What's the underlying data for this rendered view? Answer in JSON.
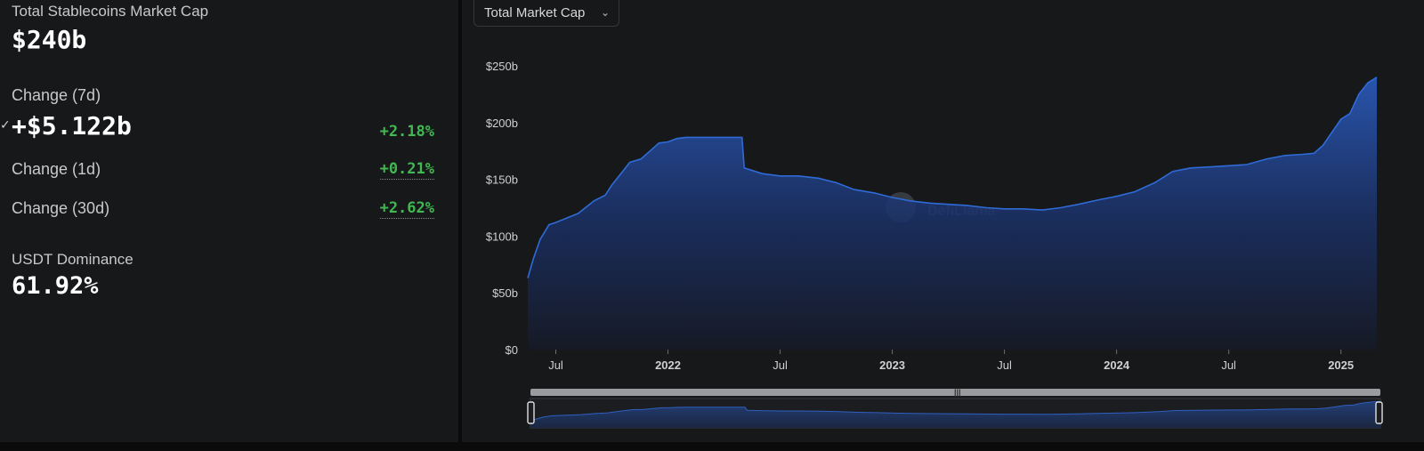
{
  "stats": {
    "market_cap_label": "Total Stablecoins Market Cap",
    "market_cap_value": "$240b",
    "change7d_label": "Change (7d)",
    "change7d_value": "+$5.122b",
    "change7d_pct": "+2.18%",
    "change1d_label": "Change (1d)",
    "change1d_pct": "+0.21%",
    "change30d_label": "Change (30d)",
    "change30d_pct": "+2.62%",
    "usdt_label": "USDT Dominance",
    "usdt_value": "61.92%"
  },
  "chart_selector": {
    "selected": "Total Market Cap"
  },
  "watermark": "DefiLlama",
  "colors": {
    "positive": "#3fb950",
    "area_line": "#2f6bd6",
    "background": "#17181a"
  },
  "icons": {
    "dropdown": "chevron-down-icon",
    "brush_grip": "grip-icon"
  },
  "chart_data": {
    "type": "area",
    "title": "",
    "xlabel": "",
    "ylabel": "",
    "ylim": [
      0,
      250
    ],
    "y_unit": "billions USD",
    "y_ticks": [
      "$0",
      "$50b",
      "$100b",
      "$150b",
      "$200b",
      "$250b"
    ],
    "x_ticks": [
      "Jul",
      "2022",
      "Jul",
      "2023",
      "Jul",
      "2024",
      "Jul",
      "2025"
    ],
    "x_tick_years": [
      2021.5,
      2022.0,
      2022.5,
      2023.0,
      2023.5,
      2024.0,
      2024.5,
      2025.0
    ],
    "x_range": [
      2021.375,
      2025.16
    ],
    "grid": false,
    "legend": "none",
    "series": [
      {
        "x": [
          2021.375,
          2021.4,
          2021.43,
          2021.47,
          2021.5,
          2021.55,
          2021.6,
          2021.67,
          2021.72,
          2021.75,
          2021.83,
          2021.88,
          2021.92,
          2021.96,
          2022.0,
          2022.04,
          2022.08,
          2022.13,
          2022.17,
          2022.25,
          2022.29,
          2022.33,
          2022.34,
          2022.42,
          2022.5,
          2022.58,
          2022.67,
          2022.75,
          2022.83,
          2022.92,
          2023.0,
          2023.08,
          2023.17,
          2023.25,
          2023.33,
          2023.42,
          2023.5,
          2023.58,
          2023.67,
          2023.75,
          2023.83,
          2023.92,
          2024.0,
          2024.08,
          2024.17,
          2024.25,
          2024.33,
          2024.42,
          2024.5,
          2024.58,
          2024.67,
          2024.75,
          2024.83,
          2024.88,
          2024.92,
          2025.0,
          2025.04,
          2025.08,
          2025.12,
          2025.16
        ],
        "values": [
          63,
          80,
          97,
          110,
          112,
          116,
          120,
          131,
          136,
          145,
          165,
          168,
          175,
          182,
          183,
          186,
          187,
          187,
          187,
          187,
          187,
          187,
          160,
          155,
          153,
          153,
          151,
          147,
          141,
          138,
          134,
          131,
          129,
          128,
          127,
          125,
          124,
          124,
          123,
          125,
          128,
          132,
          135,
          139,
          147,
          157,
          160,
          161,
          162,
          163,
          168,
          171,
          172,
          173,
          180,
          203,
          208,
          225,
          235,
          240
        ]
      }
    ]
  }
}
